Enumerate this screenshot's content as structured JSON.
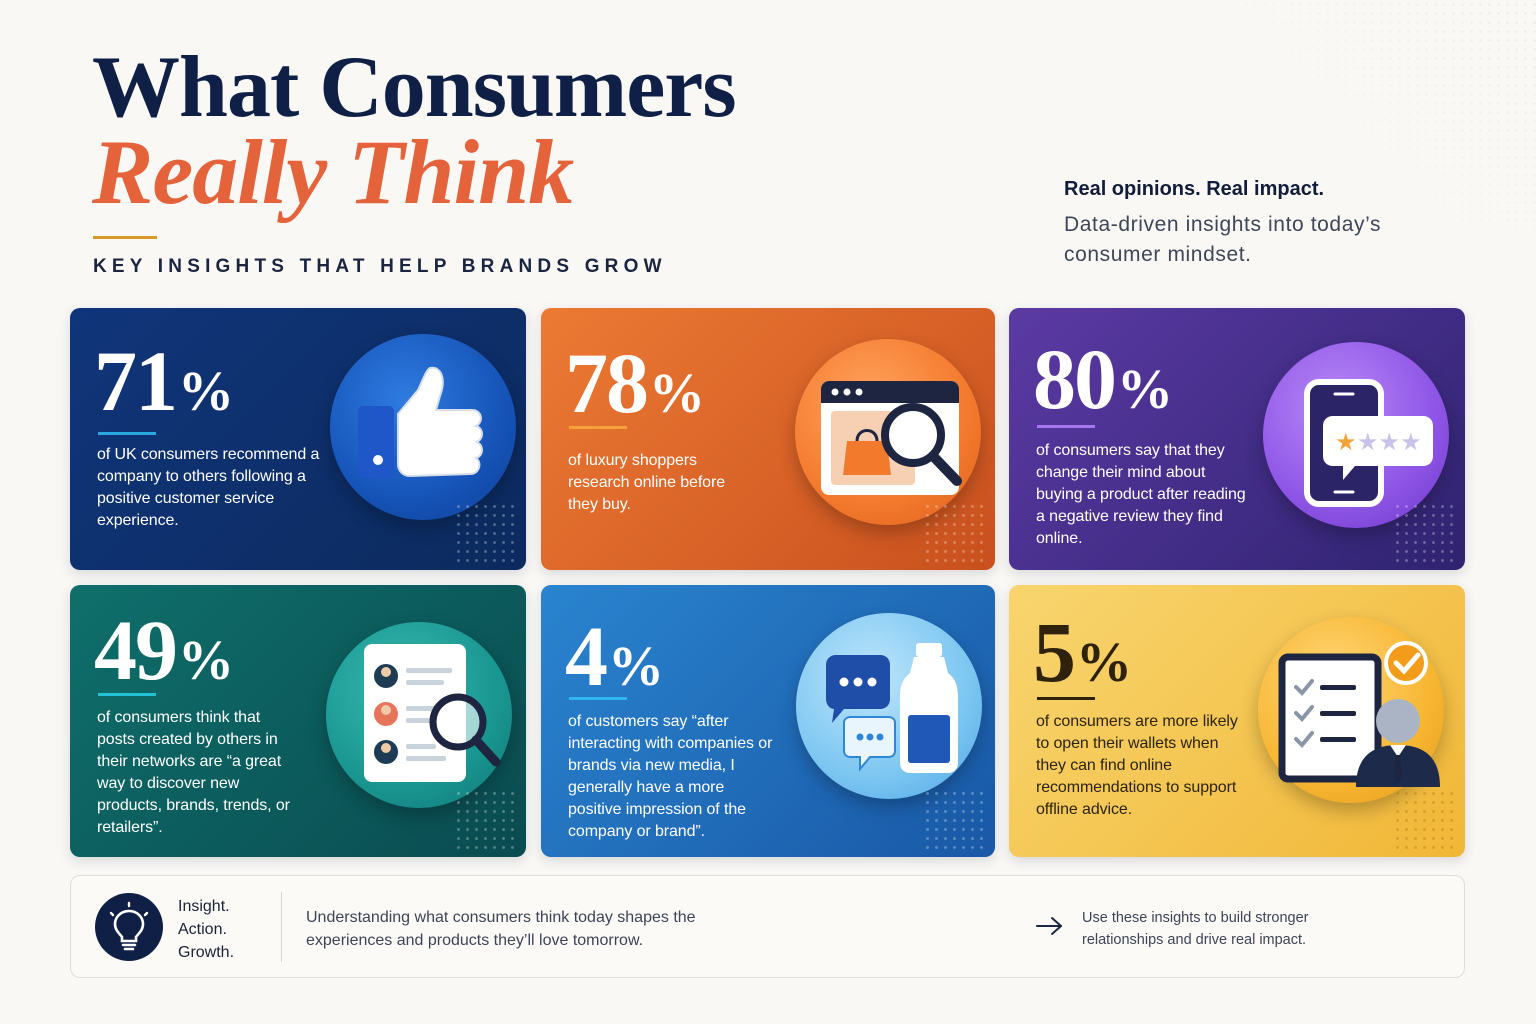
{
  "header": {
    "title_line1": "What Consumers",
    "title_line2": "Really Think",
    "kicker": "KEY INSIGHTS THAT HELP BRANDS GROW",
    "tagline": "Real opinions. Real impact.",
    "tagline_sub": "Data-driven insights into today’s consumer mindset."
  },
  "cards": [
    {
      "number": "71",
      "unit": "%",
      "text": "of UK consumers recommend a company to others following a positive customer service experience.",
      "accent": "#2aa7e0",
      "icon": "thumbs-up-icon"
    },
    {
      "number": "78",
      "unit": "%",
      "text": "of luxury shoppers research online before they buy.",
      "accent": "#f6a23b",
      "icon": "browser-search-icon"
    },
    {
      "number": "80",
      "unit": "%",
      "text": "of consumers say that they change their mind about buying a product after reading a negative review they find online.",
      "accent": "#a678f0",
      "icon": "phone-review-icon"
    },
    {
      "number": "49",
      "unit": "%",
      "text": "of consumers think that posts created by others in their networks are “a great way to discover new products, brands, trends, or retailers”.",
      "accent": "#22c2d6",
      "icon": "profile-search-icon"
    },
    {
      "number": "4",
      "unit": "%",
      "text": "of customers say “after interacting with companies or brands via new media, I generally have a more positive impression of the company or brand”.",
      "accent": "#2fb6f0",
      "icon": "chat-bottle-icon"
    },
    {
      "number": "5",
      "unit": "%",
      "text": "of consumers are more likely to open their wallets when they can find online recommendations to support offline advice.",
      "accent": "#2e220c",
      "icon": "advisor-checklist-icon"
    }
  ],
  "banner": {
    "motto": [
      "Insight.",
      "Action.",
      "Growth."
    ],
    "text": "Understanding what consumers think today shapes the experiences and products they’ll love tomorrow.",
    "cta": "Use these insights to build stronger relationships and drive real impact.",
    "icon": "lightbulb-icon"
  }
}
